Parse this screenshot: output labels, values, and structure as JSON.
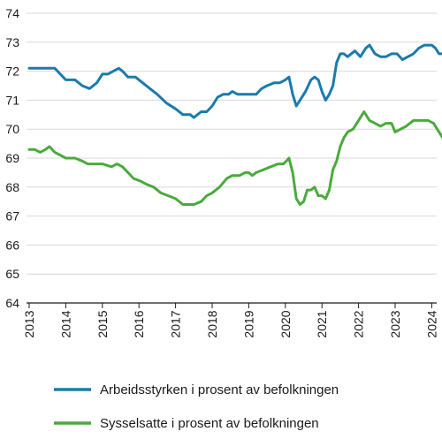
{
  "chart_data": {
    "type": "line",
    "title": "",
    "xlabel": "",
    "ylabel": "",
    "xlim": [
      2013,
      2024.3
    ],
    "ylim": [
      64,
      74
    ],
    "yticks": [
      64,
      65,
      66,
      67,
      68,
      69,
      70,
      71,
      72,
      73,
      74
    ],
    "xticks": [
      "2013",
      "2014",
      "2015",
      "2016",
      "2017",
      "2018",
      "2019",
      "2020",
      "2021",
      "2022",
      "2023",
      "2024"
    ],
    "grid": "horizontal",
    "legend_position": "bottom",
    "series": [
      {
        "name": "Arbeidsstyrken i prosent av befolkningen",
        "color": "#1a7bab",
        "points": [
          [
            2013.0,
            72.1
          ],
          [
            2013.5,
            72.1
          ],
          [
            2013.7,
            72.1
          ],
          [
            2013.85,
            71.9
          ],
          [
            2014.0,
            71.7
          ],
          [
            2014.25,
            71.7
          ],
          [
            2014.45,
            71.5
          ],
          [
            2014.65,
            71.4
          ],
          [
            2014.85,
            71.6
          ],
          [
            2015.0,
            71.9
          ],
          [
            2015.15,
            71.9
          ],
          [
            2015.3,
            72.0
          ],
          [
            2015.45,
            72.1
          ],
          [
            2015.55,
            72.0
          ],
          [
            2015.7,
            71.8
          ],
          [
            2015.9,
            71.8
          ],
          [
            2016.1,
            71.6
          ],
          [
            2016.3,
            71.4
          ],
          [
            2016.5,
            71.2
          ],
          [
            2016.75,
            70.9
          ],
          [
            2017.0,
            70.7
          ],
          [
            2017.2,
            70.5
          ],
          [
            2017.4,
            70.5
          ],
          [
            2017.5,
            70.4
          ],
          [
            2017.7,
            70.6
          ],
          [
            2017.85,
            70.6
          ],
          [
            2018.0,
            70.8
          ],
          [
            2018.15,
            71.1
          ],
          [
            2018.3,
            71.2
          ],
          [
            2018.45,
            71.2
          ],
          [
            2018.55,
            71.3
          ],
          [
            2018.7,
            71.2
          ],
          [
            2018.8,
            71.2
          ],
          [
            2019.0,
            71.2
          ],
          [
            2019.2,
            71.2
          ],
          [
            2019.35,
            71.4
          ],
          [
            2019.5,
            71.5
          ],
          [
            2019.7,
            71.6
          ],
          [
            2019.85,
            71.6
          ],
          [
            2020.0,
            71.7
          ],
          [
            2020.1,
            71.8
          ],
          [
            2020.2,
            71.2
          ],
          [
            2020.3,
            70.8
          ],
          [
            2020.4,
            71.0
          ],
          [
            2020.55,
            71.3
          ],
          [
            2020.7,
            71.7
          ],
          [
            2020.8,
            71.8
          ],
          [
            2020.9,
            71.7
          ],
          [
            2021.0,
            71.3
          ],
          [
            2021.1,
            71.0
          ],
          [
            2021.2,
            71.2
          ],
          [
            2021.3,
            71.5
          ],
          [
            2021.4,
            72.3
          ],
          [
            2021.5,
            72.6
          ],
          [
            2021.6,
            72.6
          ],
          [
            2021.7,
            72.5
          ],
          [
            2021.8,
            72.6
          ],
          [
            2021.9,
            72.7
          ],
          [
            2022.05,
            72.5
          ],
          [
            2022.2,
            72.8
          ],
          [
            2022.3,
            72.9
          ],
          [
            2022.45,
            72.6
          ],
          [
            2022.6,
            72.5
          ],
          [
            2022.75,
            72.5
          ],
          [
            2022.9,
            72.6
          ],
          [
            2023.05,
            72.6
          ],
          [
            2023.2,
            72.4
          ],
          [
            2023.35,
            72.5
          ],
          [
            2023.5,
            72.6
          ],
          [
            2023.65,
            72.8
          ],
          [
            2023.8,
            72.9
          ],
          [
            2024.0,
            72.9
          ],
          [
            2024.1,
            72.8
          ],
          [
            2024.2,
            72.6
          ],
          [
            2024.3,
            72.6
          ]
        ]
      },
      {
        "name": "Sysselsatte i prosent av befolkningen",
        "color": "#4aaa3c",
        "points": [
          [
            2013.0,
            69.3
          ],
          [
            2013.15,
            69.3
          ],
          [
            2013.3,
            69.2
          ],
          [
            2013.45,
            69.3
          ],
          [
            2013.55,
            69.4
          ],
          [
            2013.7,
            69.2
          ],
          [
            2013.85,
            69.1
          ],
          [
            2014.0,
            69.0
          ],
          [
            2014.25,
            69.0
          ],
          [
            2014.45,
            68.9
          ],
          [
            2014.6,
            68.8
          ],
          [
            2014.85,
            68.8
          ],
          [
            2015.0,
            68.8
          ],
          [
            2015.25,
            68.7
          ],
          [
            2015.4,
            68.8
          ],
          [
            2015.55,
            68.7
          ],
          [
            2015.7,
            68.5
          ],
          [
            2015.85,
            68.3
          ],
          [
            2016.05,
            68.2
          ],
          [
            2016.2,
            68.1
          ],
          [
            2016.4,
            68.0
          ],
          [
            2016.6,
            67.8
          ],
          [
            2016.8,
            67.7
          ],
          [
            2017.0,
            67.6
          ],
          [
            2017.2,
            67.4
          ],
          [
            2017.5,
            67.4
          ],
          [
            2017.7,
            67.5
          ],
          [
            2017.85,
            67.7
          ],
          [
            2018.0,
            67.8
          ],
          [
            2018.2,
            68.0
          ],
          [
            2018.4,
            68.3
          ],
          [
            2018.55,
            68.4
          ],
          [
            2018.75,
            68.4
          ],
          [
            2018.9,
            68.5
          ],
          [
            2019.0,
            68.5
          ],
          [
            2019.1,
            68.4
          ],
          [
            2019.2,
            68.5
          ],
          [
            2019.4,
            68.6
          ],
          [
            2019.6,
            68.7
          ],
          [
            2019.8,
            68.8
          ],
          [
            2019.95,
            68.8
          ],
          [
            2020.1,
            69.0
          ],
          [
            2020.2,
            68.5
          ],
          [
            2020.3,
            67.6
          ],
          [
            2020.4,
            67.4
          ],
          [
            2020.5,
            67.5
          ],
          [
            2020.6,
            67.9
          ],
          [
            2020.7,
            67.9
          ],
          [
            2020.8,
            68.0
          ],
          [
            2020.9,
            67.7
          ],
          [
            2021.0,
            67.7
          ],
          [
            2021.1,
            67.6
          ],
          [
            2021.2,
            67.9
          ],
          [
            2021.3,
            68.6
          ],
          [
            2021.4,
            68.9
          ],
          [
            2021.5,
            69.4
          ],
          [
            2021.6,
            69.7
          ],
          [
            2021.7,
            69.9
          ],
          [
            2021.85,
            70.0
          ],
          [
            2022.0,
            70.3
          ],
          [
            2022.15,
            70.6
          ],
          [
            2022.3,
            70.3
          ],
          [
            2022.45,
            70.2
          ],
          [
            2022.6,
            70.1
          ],
          [
            2022.75,
            70.2
          ],
          [
            2022.9,
            70.2
          ],
          [
            2023.0,
            69.9
          ],
          [
            2023.15,
            70.0
          ],
          [
            2023.3,
            70.1
          ],
          [
            2023.5,
            70.3
          ],
          [
            2023.7,
            70.3
          ],
          [
            2023.9,
            70.3
          ],
          [
            2024.05,
            70.2
          ],
          [
            2024.15,
            70.0
          ],
          [
            2024.25,
            69.8
          ],
          [
            2024.3,
            69.7
          ]
        ]
      }
    ]
  }
}
